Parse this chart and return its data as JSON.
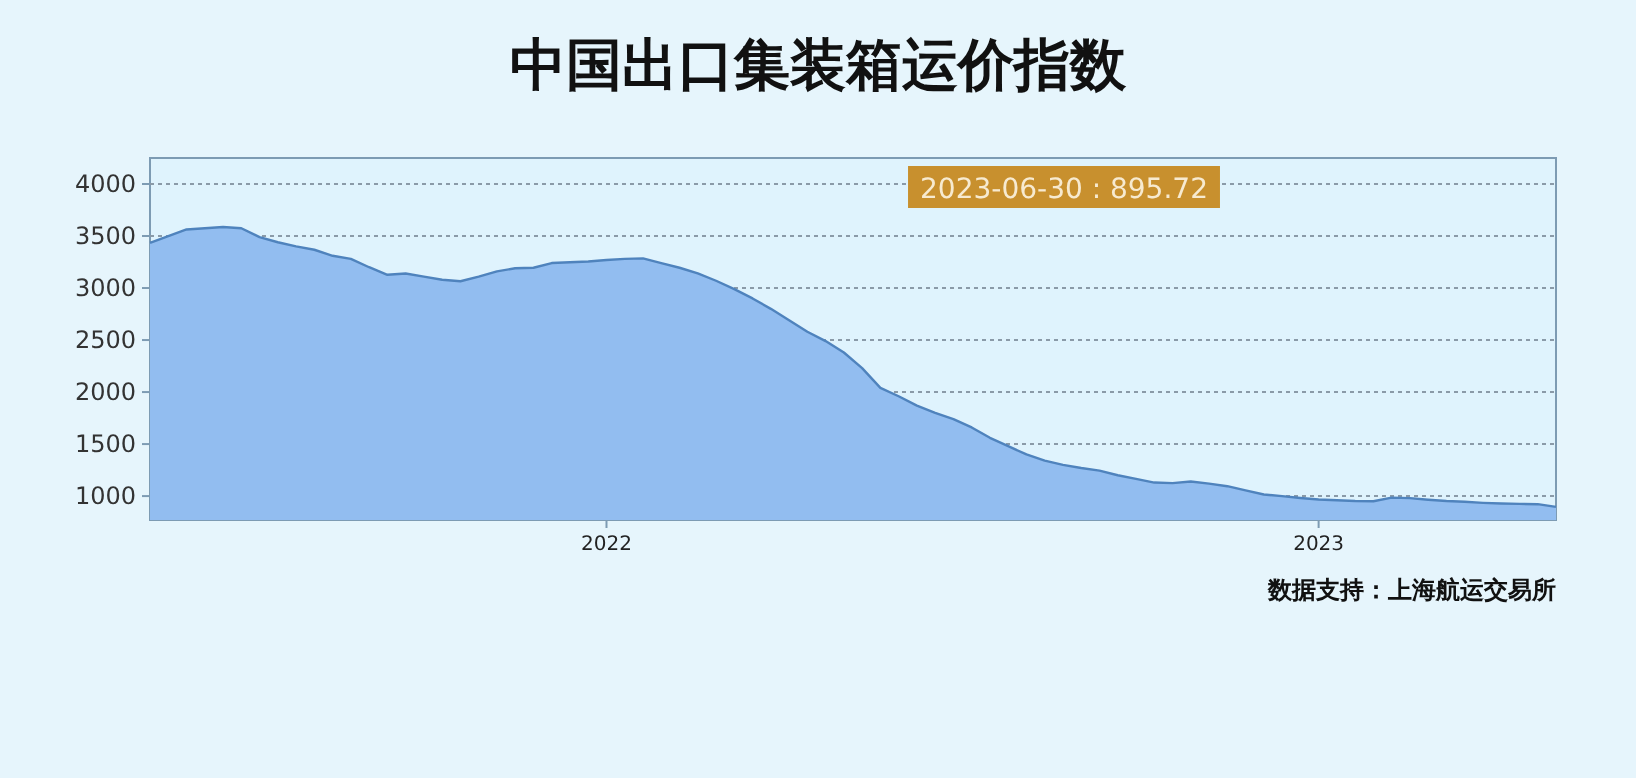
{
  "chart_data": {
    "type": "area",
    "title": "中国出口集装箱运价指数",
    "categories": [
      null,
      null,
      null,
      null,
      null,
      null,
      null,
      null,
      null,
      null,
      null,
      null,
      null,
      null,
      null,
      null,
      null,
      null,
      null,
      null,
      null,
      null,
      null,
      null,
      null,
      "2022",
      null,
      null,
      null,
      null,
      null,
      null,
      null,
      null,
      null,
      null,
      null,
      null,
      null,
      null,
      null,
      null,
      null,
      null,
      null,
      null,
      null,
      null,
      null,
      null,
      null,
      null,
      null,
      null,
      null,
      null,
      null,
      null,
      null,
      null,
      null,
      null,
      null,
      null,
      "2023",
      null,
      null,
      null,
      null,
      null,
      null,
      null,
      null,
      null,
      null,
      null,
      null,
      null
    ],
    "series": [
      {
        "color": "#92bdf0",
        "values": [
          3435,
          3500,
          3563,
          3575,
          3587,
          3575,
          3490,
          3440,
          3400,
          3368,
          3310,
          3280,
          3200,
          3127,
          3140,
          3110,
          3080,
          3065,
          3110,
          3160,
          3190,
          3195,
          3240,
          3248,
          3255,
          3269,
          3280,
          3285,
          3240,
          3195,
          3140,
          3070,
          2990,
          2900,
          2800,
          2690,
          2580,
          2490,
          2380,
          2230,
          2040,
          1960,
          1870,
          1800,
          1740,
          1660,
          1560,
          1480,
          1400,
          1340,
          1300,
          1270,
          1245,
          1200,
          1165,
          1130,
          1125,
          1140,
          1120,
          1095,
          1055,
          1015,
          1000,
          982,
          967,
          960,
          952,
          950,
          985,
          980,
          965,
          952,
          945,
          935,
          928,
          925,
          922,
          895.72
        ]
      }
    ],
    "ylim": [
      770,
      4250
    ],
    "yticks": [
      1000,
      1500,
      2000,
      2500,
      3000,
      3500,
      4000
    ],
    "grid": "y",
    "annotations": [
      "2023-06-30 : 895.72",
      "数据支持：上海航运交易所"
    ]
  }
}
